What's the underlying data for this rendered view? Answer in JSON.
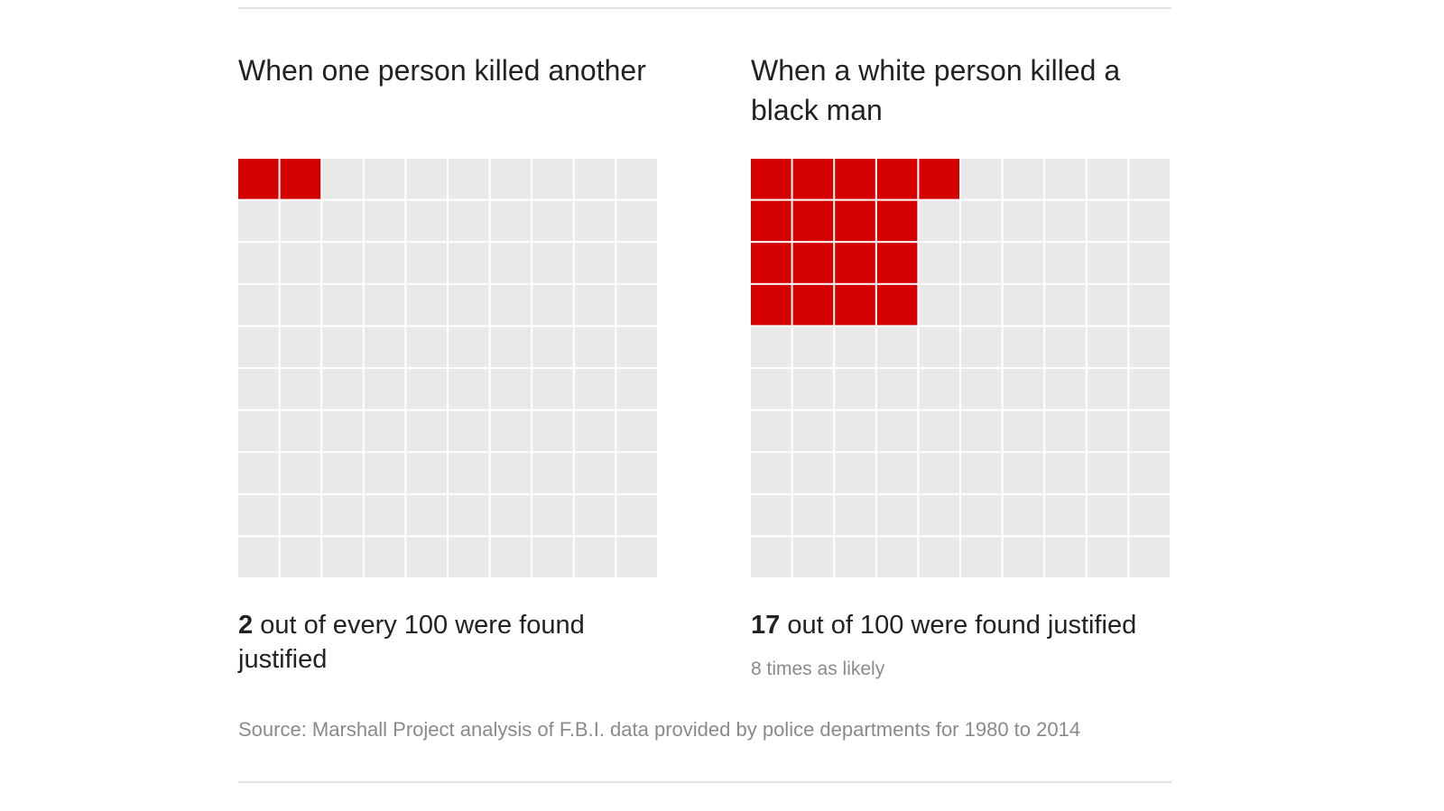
{
  "chart_data": [
    {
      "type": "waffle",
      "title": "When one person killed another",
      "grid": [
        10,
        10
      ],
      "total": 100,
      "value": 2,
      "fill_rows": [
        2
      ],
      "colors": {
        "filled": "#d50000",
        "empty": "#e9e9e9"
      },
      "caption": {
        "number": "2",
        "text": " out of every 100 were found justified"
      },
      "note": ""
    },
    {
      "type": "waffle",
      "title": "When a white person killed a black man",
      "grid": [
        10,
        10
      ],
      "total": 100,
      "value": 17,
      "fill_rows": [
        5,
        4,
        4,
        4
      ],
      "colors": {
        "filled": "#d50000",
        "empty": "#e9e9e9"
      },
      "caption": {
        "number": "17",
        "text": " out of 100 were found justified"
      },
      "note": "8 times as likely"
    }
  ],
  "source": "Source: Marshall Project analysis of F.B.I. data provided by police departments for 1980 to 2014"
}
